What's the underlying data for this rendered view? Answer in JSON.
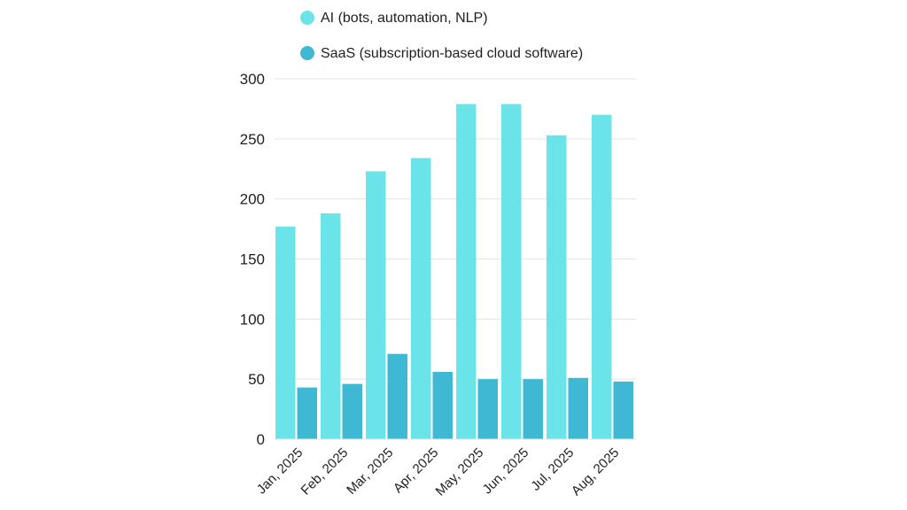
{
  "chart_data": {
    "type": "bar",
    "categories": [
      "Jan, 2025",
      "Feb, 2025",
      "Mar, 2025",
      "Apr, 2025",
      "May, 2025",
      "Jun, 2025",
      "Jul, 2025",
      "Aug, 2025"
    ],
    "series": [
      {
        "name": "AI (bots, automation, NLP)",
        "color": "#6ae4e8",
        "values": [
          177,
          188,
          223,
          234,
          279,
          279,
          253,
          270
        ]
      },
      {
        "name": "SaaS (subscription-based cloud software)",
        "color": "#3fb8d4",
        "values": [
          43,
          46,
          71,
          56,
          50,
          50,
          51,
          48
        ]
      }
    ],
    "yticks": [
      0,
      50,
      100,
      150,
      200,
      250,
      300
    ],
    "ylim": [
      0,
      300
    ],
    "grid": true,
    "legend_position": "top"
  }
}
